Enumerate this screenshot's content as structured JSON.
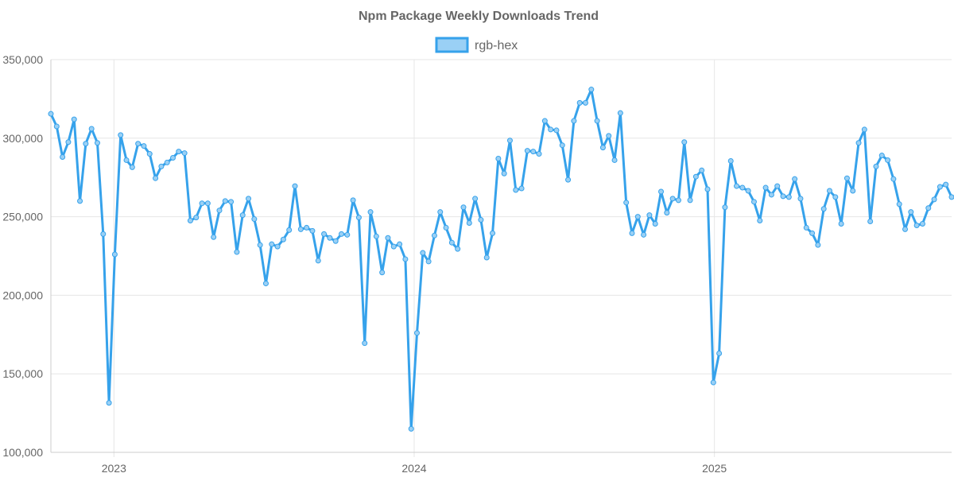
{
  "chart_data": {
    "type": "line",
    "title": "Npm Package Weekly Downloads Trend",
    "xlabel": "",
    "ylabel": "",
    "ylim": [
      100000,
      350000
    ],
    "y_ticks": [
      100000,
      150000,
      200000,
      250000,
      300000,
      350000
    ],
    "y_tick_labels": [
      "100,000",
      "150,000",
      "200,000",
      "250,000",
      "300,000",
      "350,000"
    ],
    "x_start_week": 2022.79,
    "x_end_week": 2025.79,
    "x_ticks": [
      {
        "label": "2023",
        "value": 2023.0
      },
      {
        "label": "2024",
        "value": 2024.0
      },
      {
        "label": "2025",
        "value": 2025.0
      }
    ],
    "grid": true,
    "legend_position": "top",
    "colors": {
      "line": "#36A2EB",
      "fill": "#9AD0F5",
      "grid": "#e6e6e6",
      "axis": "#cccccc",
      "text": "#666666"
    },
    "series": [
      {
        "name": "rgb-hex",
        "values": [
          315500,
          307500,
          288000,
          297500,
          312000,
          260000,
          296500,
          306000,
          297000,
          239000,
          131500,
          226000,
          302000,
          286000,
          281500,
          296500,
          295000,
          290000,
          274500,
          282000,
          284500,
          287500,
          291500,
          290500,
          247500,
          249500,
          258500,
          258500,
          237000,
          254000,
          260000,
          259500,
          227500,
          251000,
          261500,
          248500,
          232000,
          207500,
          232500,
          231000,
          235500,
          241500,
          269500,
          242000,
          243000,
          241000,
          222000,
          239000,
          236500,
          234500,
          239000,
          238500,
          260500,
          249500,
          169500,
          253000,
          237500,
          214500,
          236500,
          231000,
          232500,
          223000,
          115000,
          176000,
          227000,
          221500,
          238000,
          253000,
          243000,
          233500,
          229500,
          256000,
          246000,
          261500,
          248000,
          224000,
          239500,
          287000,
          277500,
          298500,
          267000,
          268000,
          292000,
          291500,
          290000,
          311000,
          305500,
          305000,
          295500,
          273500,
          311000,
          322500,
          322500,
          331000,
          311000,
          294000,
          301500,
          286000,
          316000,
          259000,
          239500,
          250000,
          238500,
          251000,
          245500,
          266000,
          252500,
          261500,
          260500,
          297500,
          260500,
          275500,
          279500,
          267500,
          144500,
          163000,
          256000,
          285500,
          269500,
          268500,
          266500,
          259500,
          247500,
          268500,
          264000,
          269500,
          263000,
          262500,
          274000,
          261500,
          243000,
          239500,
          232000,
          255000,
          266500,
          262500,
          245500,
          274500,
          266500,
          297000,
          305500,
          247000,
          282000,
          289000,
          286000,
          274000,
          258000,
          242000,
          253000,
          244500,
          245500,
          255500,
          261000,
          269000,
          270500,
          262500
        ]
      }
    ]
  }
}
